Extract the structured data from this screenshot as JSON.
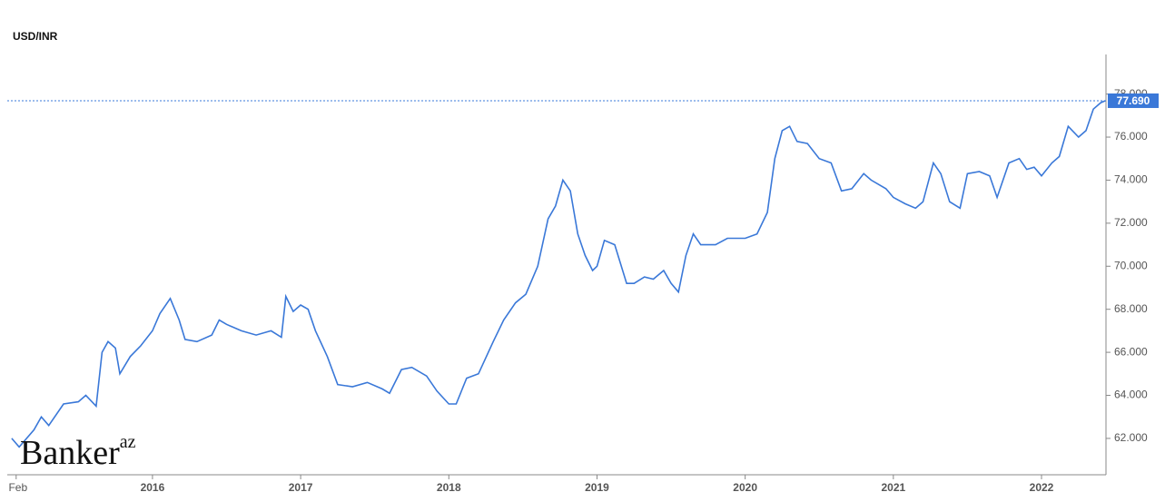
{
  "chart_data": {
    "type": "line",
    "title": "USD/INR",
    "watermark": {
      "name": "Banker",
      "suffix": "az"
    },
    "x": [
      2015.05,
      2015.1,
      2015.2,
      2015.25,
      2015.3,
      2015.4,
      2015.5,
      2015.55,
      2015.62,
      2015.66,
      2015.7,
      2015.75,
      2015.78,
      2015.85,
      2015.92,
      2016.0,
      2016.05,
      2016.12,
      2016.18,
      2016.22,
      2016.3,
      2016.4,
      2016.45,
      2016.5,
      2016.6,
      2016.7,
      2016.8,
      2016.87,
      2016.9,
      2016.95,
      2017.0,
      2017.05,
      2017.1,
      2017.18,
      2017.25,
      2017.35,
      2017.45,
      2017.55,
      2017.6,
      2017.68,
      2017.75,
      2017.85,
      2017.92,
      2018.0,
      2018.05,
      2018.12,
      2018.2,
      2018.3,
      2018.37,
      2018.45,
      2018.52,
      2018.6,
      2018.67,
      2018.72,
      2018.77,
      2018.82,
      2018.87,
      2018.92,
      2018.97,
      2019.0,
      2019.05,
      2019.12,
      2019.2,
      2019.25,
      2019.32,
      2019.38,
      2019.45,
      2019.5,
      2019.55,
      2019.6,
      2019.65,
      2019.7,
      2019.8,
      2019.88,
      2019.95,
      2020.0,
      2020.08,
      2020.15,
      2020.2,
      2020.25,
      2020.3,
      2020.35,
      2020.42,
      2020.5,
      2020.58,
      2020.65,
      2020.72,
      2020.8,
      2020.85,
      2020.95,
      2021.0,
      2021.08,
      2021.15,
      2021.2,
      2021.27,
      2021.32,
      2021.38,
      2021.45,
      2021.5,
      2021.58,
      2021.65,
      2021.7,
      2021.78,
      2021.85,
      2021.9,
      2021.95,
      2022.0,
      2022.07,
      2022.12,
      2022.18,
      2022.25,
      2022.3,
      2022.35,
      2022.4,
      2022.43
    ],
    "series": [
      {
        "name": "USD/INR",
        "color": "#3a78d8",
        "values": [
          62.0,
          61.6,
          62.4,
          63.0,
          62.6,
          63.6,
          63.7,
          64.0,
          63.5,
          66.0,
          66.5,
          66.2,
          65.0,
          65.8,
          66.3,
          67.0,
          67.8,
          68.5,
          67.5,
          66.6,
          66.5,
          66.8,
          67.5,
          67.3,
          67.0,
          66.8,
          67.0,
          66.7,
          68.6,
          67.9,
          68.2,
          68.0,
          67.0,
          65.8,
          64.5,
          64.4,
          64.6,
          64.3,
          64.1,
          65.2,
          65.3,
          64.9,
          64.2,
          63.6,
          63.6,
          64.8,
          65.0,
          66.5,
          67.5,
          68.3,
          68.7,
          70.0,
          72.2,
          72.8,
          74.0,
          73.5,
          71.5,
          70.5,
          69.8,
          70.0,
          71.2,
          71.0,
          69.2,
          69.2,
          69.5,
          69.4,
          69.8,
          69.2,
          68.8,
          70.5,
          71.5,
          71.0,
          71.0,
          71.3,
          71.3,
          71.3,
          71.5,
          72.5,
          75.0,
          76.3,
          76.5,
          75.8,
          75.7,
          75.0,
          74.8,
          73.5,
          73.6,
          74.3,
          74.0,
          73.6,
          73.2,
          72.9,
          72.7,
          73.0,
          74.8,
          74.3,
          73.0,
          72.7,
          74.3,
          74.4,
          74.2,
          73.2,
          74.8,
          75.0,
          74.5,
          74.6,
          74.2,
          74.8,
          75.1,
          76.5,
          76.0,
          76.3,
          77.3,
          77.6,
          77.69
        ]
      }
    ],
    "current": {
      "value": 77.69,
      "label": "77.690"
    },
    "xlim": [
      2015.02,
      2022.435
    ],
    "xticks": [
      {
        "value": 2015.08,
        "label": "Feb"
      },
      2016,
      2017,
      2018,
      2019,
      2020,
      2021,
      2022
    ],
    "ylim": [
      60.31,
      79.84
    ],
    "yticks": [
      {
        "value": 62,
        "label": "62.000"
      },
      {
        "value": 64,
        "label": "64.000"
      },
      {
        "value": 66,
        "label": "66.000"
      },
      {
        "value": 68,
        "label": "68.000"
      },
      {
        "value": 70,
        "label": "70.000"
      },
      {
        "value": 72,
        "label": "72.000"
      },
      {
        "value": 74,
        "label": "74.000"
      },
      {
        "value": 76,
        "label": "76.000"
      },
      {
        "value": 78,
        "label": "78.000"
      }
    ]
  }
}
